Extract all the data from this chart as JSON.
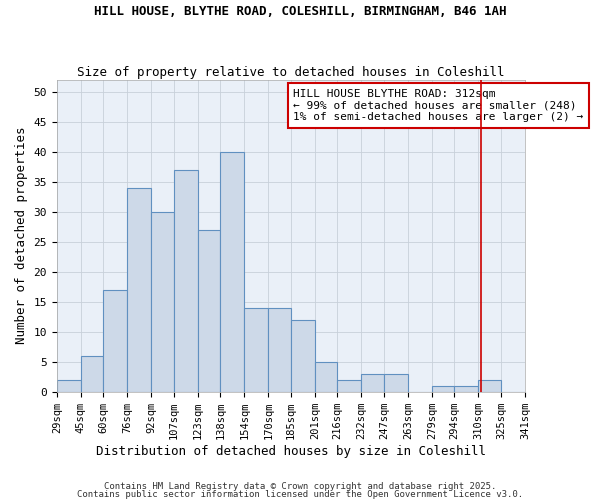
{
  "title1": "HILL HOUSE, BLYTHE ROAD, COLESHILL, BIRMINGHAM, B46 1AH",
  "title2": "Size of property relative to detached houses in Coleshill",
  "xlabel": "Distribution of detached houses by size in Coleshill",
  "ylabel": "Number of detached properties",
  "bar_edges": [
    29,
    45,
    60,
    76,
    92,
    107,
    123,
    138,
    154,
    170,
    185,
    201,
    216,
    232,
    247,
    263,
    279,
    294,
    310,
    325,
    341
  ],
  "bar_heights": [
    2,
    6,
    17,
    34,
    30,
    37,
    27,
    40,
    14,
    14,
    12,
    5,
    2,
    3,
    3,
    0,
    1,
    1,
    2,
    0
  ],
  "bar_color": "#cdd9e8",
  "bar_edge_color": "#6090c0",
  "grid_color": "#c8d0da",
  "bg_color": "#eaf0f8",
  "vline_x": 312,
  "vline_color": "#cc0000",
  "annotation_text": "HILL HOUSE BLYTHE ROAD: 312sqm\n← 99% of detached houses are smaller (248)\n1% of semi-detached houses are larger (2) →",
  "annotation_box_color": "#cc0000",
  "ylim": [
    0,
    52
  ],
  "yticks": [
    0,
    5,
    10,
    15,
    20,
    25,
    30,
    35,
    40,
    45,
    50
  ],
  "footer_text1": "Contains HM Land Registry data © Crown copyright and database right 2025.",
  "footer_text2": "Contains public sector information licensed under the Open Government Licence v3.0."
}
